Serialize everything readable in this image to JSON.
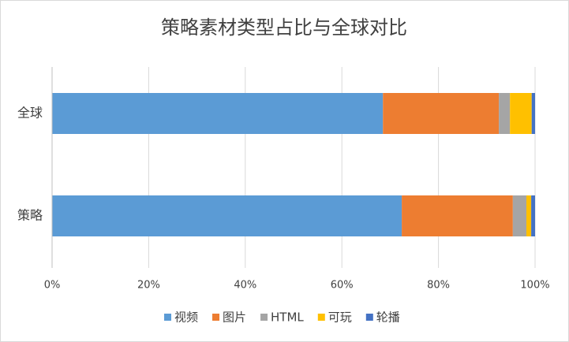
{
  "chart_data": {
    "type": "stacked_bar_horizontal",
    "title": "策略素材类型占比与全球对比",
    "categories": [
      "全球",
      "策略"
    ],
    "series": [
      {
        "name": "视频",
        "color": "#5b9bd5",
        "values": [
          68.5,
          72.4
        ]
      },
      {
        "name": "图片",
        "color": "#ed7d31",
        "values": [
          24.0,
          23.0
        ]
      },
      {
        "name": "HTML",
        "color": "#a5a5a5",
        "values": [
          2.3,
          2.8
        ]
      },
      {
        "name": "可玩",
        "color": "#ffc000",
        "values": [
          4.5,
          1.0
        ]
      },
      {
        "name": "轮播",
        "color": "#4472c4",
        "values": [
          0.7,
          0.8
        ]
      }
    ],
    "xlim": [
      0,
      100
    ],
    "xticks": [
      {
        "value": 0,
        "label": "0%"
      },
      {
        "value": 20,
        "label": "20%"
      },
      {
        "value": 40,
        "label": "40%"
      },
      {
        "value": 60,
        "label": "60%"
      },
      {
        "value": 80,
        "label": "80%"
      },
      {
        "value": 100,
        "label": "100%"
      }
    ],
    "grid": true,
    "legend": "bottom"
  }
}
